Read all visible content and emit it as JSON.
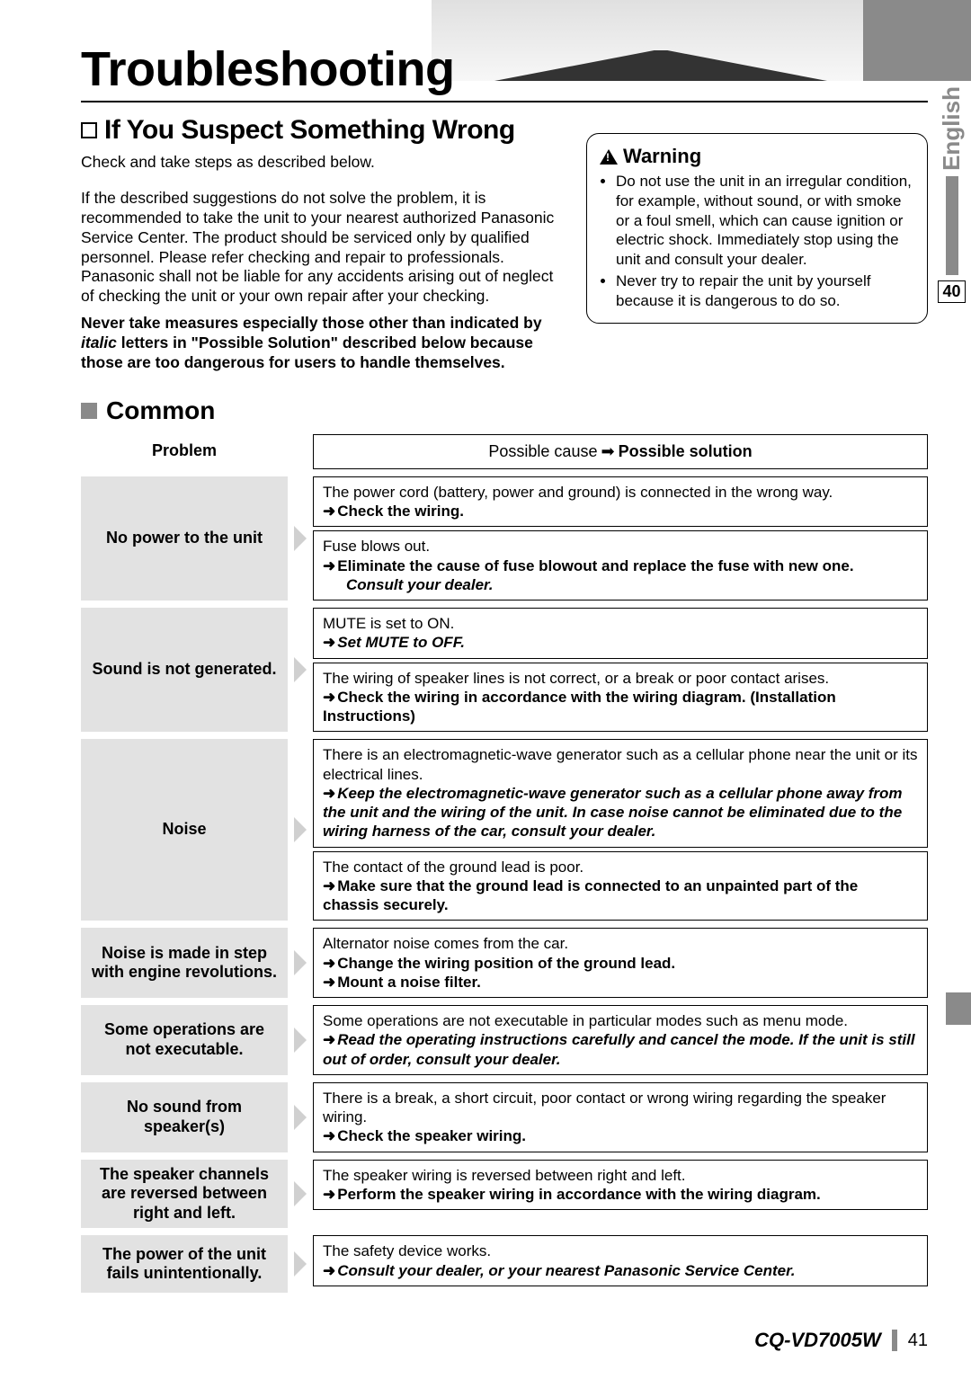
{
  "title": "Troubleshooting",
  "sideLang": "English",
  "sidePage": "40",
  "subhead": "If You Suspect Something Wrong",
  "intro1": "Check and take steps as described below.",
  "intro2": "If the described suggestions do not solve the problem, it is recommended to take the unit to your nearest authorized Panasonic Service Center. The product should be serviced only by qualified personnel. Please refer checking and repair to professionals. Panasonic shall not be liable for any accidents arising out of neglect of checking the unit or your own repair after your checking.",
  "intro3a": "Never take measures especially those other than indicated by ",
  "intro3b": "italic",
  "intro3c": " letters in \"Possible Solution\" described below because those are too dangerous for users to handle themselves.",
  "warning": {
    "title": "Warning",
    "items": [
      "Do not use the unit in an irregular condition, for example, without sound, or with smoke or a foul smell, which can cause ignition or electric shock. Immediately stop using the unit and consult your dealer.",
      "Never try to repair the unit by yourself because it is dangerous to do so."
    ]
  },
  "section": "Common",
  "headerProblem": "Problem",
  "headerCause": "Possible cause",
  "headerSolution": "Possible solution",
  "rows": [
    {
      "problem": "No power to the unit",
      "cells": [
        {
          "cause": "The power cord (battery, power and ground) is connected in the wrong way.",
          "sol": "Check the wiring.",
          "style": "b"
        },
        {
          "cause": "Fuse blows out.",
          "sol": "Eliminate the cause of fuse blowout and replace the fuse with new one.",
          "style": "b",
          "sol2": "Consult your dealer.",
          "style2": "bi"
        }
      ]
    },
    {
      "problem": "Sound is not generated.",
      "cells": [
        {
          "cause": "MUTE is set to ON.",
          "sol": "Set MUTE to OFF.",
          "style": "bi"
        },
        {
          "cause": "The wiring of speaker lines is not correct, or a break or poor contact arises.",
          "sol": "Check the wiring in accordance with the wiring diagram. (Installation Instructions)",
          "style": "b"
        }
      ]
    },
    {
      "problem": "Noise",
      "cells": [
        {
          "cause": "There is an electromagnetic-wave generator such as a cellular phone near the unit or its electrical lines.",
          "sol": "Keep the electromagnetic-wave generator such as a cellular phone away from the unit and the wiring of the unit. In case noise cannot be eliminated due to the wiring harness of the car, consult your dealer.",
          "style": "bi"
        },
        {
          "cause": "The contact of the ground lead is poor.",
          "sol": "Make sure that the ground lead is connected to an unpainted part of the chassis securely.",
          "style": "b"
        }
      ]
    },
    {
      "problem": "Noise is made in step with engine revolutions.",
      "cells": [
        {
          "cause": "Alternator noise comes from the car.",
          "sol": "Change the wiring position of the ground lead.",
          "style": "b",
          "sol2b": "Mount a noise filter.",
          "style2b": "b"
        }
      ]
    },
    {
      "problem": "Some operations are not executable.",
      "cells": [
        {
          "cause": "Some operations are not executable in particular modes such as menu mode.",
          "sol": "Read the operating instructions carefully and cancel the mode. If the unit is still out of order, consult your dealer.",
          "style": "bi"
        }
      ]
    },
    {
      "problem": "No sound from speaker(s)",
      "cells": [
        {
          "cause": "There is a break, a short circuit, poor contact or wrong wiring regarding the speaker wiring.",
          "sol": "Check the speaker wiring.",
          "style": "b"
        }
      ]
    },
    {
      "problem": "The speaker channels are reversed between right and left.",
      "cells": [
        {
          "cause": "The speaker wiring is reversed between right and left.",
          "sol": "Perform the speaker wiring in accordance with the wiring diagram.",
          "style": "b"
        }
      ]
    },
    {
      "problem": "The power of the unit fails unintentionally.",
      "cells": [
        {
          "cause": "The safety device works.",
          "sol": "Consult your dealer, or your nearest Panasonic Service Center.",
          "style": "bi"
        }
      ]
    }
  ],
  "footer": {
    "model": "CQ-VD7005W",
    "page": "41"
  }
}
